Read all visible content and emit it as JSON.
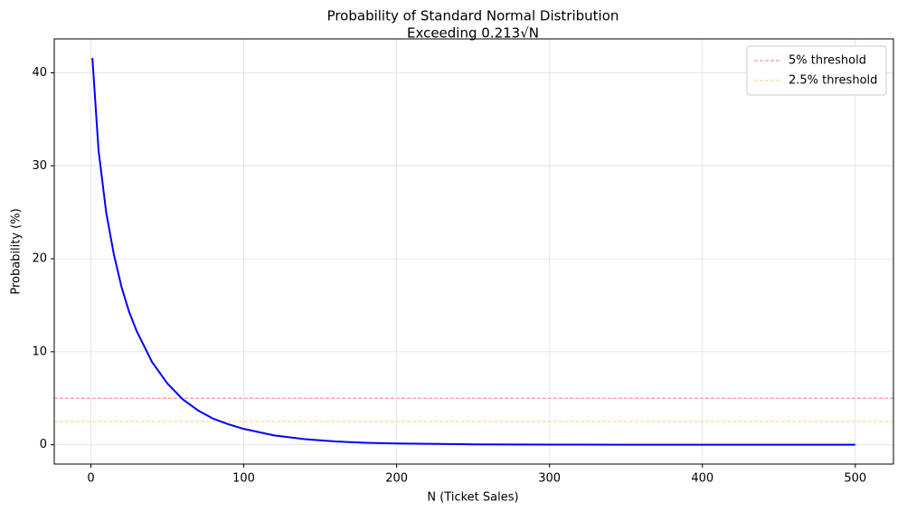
{
  "chart_data": {
    "type": "line",
    "title": [
      "Probability of Standard Normal Distribution",
      "Exceeding 0.213√N"
    ],
    "x_label": "N (Ticket Sales)",
    "y_label": "Probability (%)",
    "x": [
      1,
      5,
      10,
      15,
      20,
      25,
      30,
      40,
      50,
      60,
      70,
      80,
      90,
      100,
      120,
      140,
      160,
      180,
      200,
      250,
      300,
      350,
      400,
      450,
      500
    ],
    "series": [
      {
        "color": "#0000ff",
        "values": [
          41.6,
          31.7,
          25.0,
          20.5,
          17.0,
          14.3,
          12.2,
          8.9,
          6.6,
          4.9,
          3.7,
          2.8,
          2.2,
          1.7,
          1.0,
          0.6,
          0.35,
          0.21,
          0.13,
          0.04,
          0.01,
          0,
          0,
          0,
          0
        ]
      }
    ],
    "hlines": [
      {
        "name": "5% threshold",
        "value": 5,
        "color": "#ff7f7f"
      },
      {
        "name": "2.5% threshold",
        "value": 2.5,
        "color": "#ffd27f"
      }
    ],
    "xlim": [
      -23.95,
      524.95
    ],
    "ylim": [
      -2.08,
      43.65
    ],
    "xticks": [
      0,
      100,
      200,
      300,
      400,
      500
    ],
    "yticks": [
      0,
      10,
      20,
      30,
      40
    ],
    "grid": true,
    "legend": "upper-right"
  }
}
